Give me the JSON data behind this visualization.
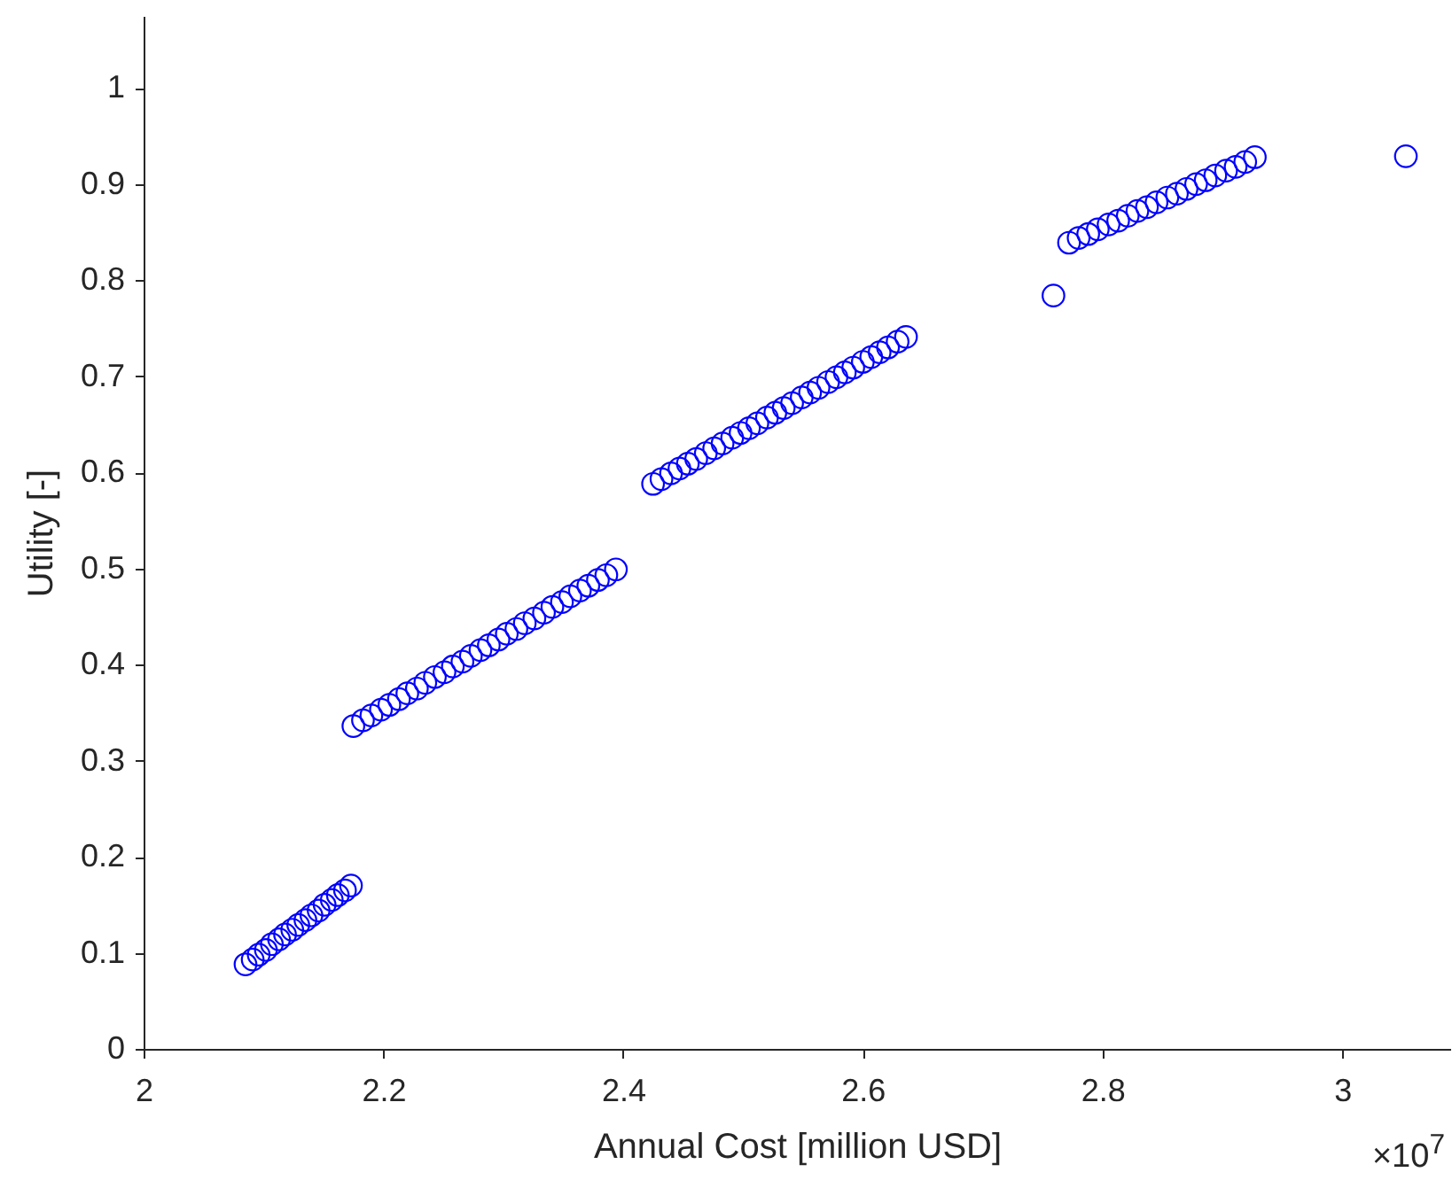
{
  "chart_data": {
    "type": "scatter",
    "xlabel": "Annual Cost [million USD]",
    "ylabel": "Utility [-]",
    "color": "#0000ff",
    "marker": "circle",
    "x": [
      2.085,
      2.091,
      2.096,
      2.102,
      2.107,
      2.113,
      2.118,
      2.124,
      2.129,
      2.135,
      2.14,
      2.146,
      2.151,
      2.157,
      2.162,
      2.168,
      2.173,
      2.175,
      2.183,
      2.19,
      2.198,
      2.205,
      2.213,
      2.22,
      2.228,
      2.235,
      2.243,
      2.251,
      2.258,
      2.266,
      2.273,
      2.281,
      2.288,
      2.296,
      2.303,
      2.311,
      2.318,
      2.326,
      2.334,
      2.341,
      2.349,
      2.356,
      2.364,
      2.371,
      2.379,
      2.386,
      2.394,
      2.425,
      2.432,
      2.44,
      2.447,
      2.454,
      2.461,
      2.469,
      2.476,
      2.483,
      2.491,
      2.498,
      2.505,
      2.512,
      2.52,
      2.527,
      2.534,
      2.541,
      2.549,
      2.556,
      2.563,
      2.571,
      2.578,
      2.585,
      2.592,
      2.6,
      2.607,
      2.614,
      2.621,
      2.629,
      2.636,
      2.759,
      2.772,
      2.78,
      2.788,
      2.796,
      2.805,
      2.813,
      2.821,
      2.829,
      2.837,
      2.845,
      2.854,
      2.862,
      2.87,
      2.878,
      2.886,
      2.894,
      2.903,
      2.911,
      2.919,
      2.927,
      3.053
    ],
    "values": [
      0.088,
      0.093,
      0.098,
      0.103,
      0.109,
      0.114,
      0.119,
      0.124,
      0.129,
      0.134,
      0.139,
      0.144,
      0.15,
      0.155,
      0.16,
      0.165,
      0.17,
      0.336,
      0.342,
      0.347,
      0.353,
      0.358,
      0.364,
      0.37,
      0.375,
      0.381,
      0.387,
      0.392,
      0.398,
      0.403,
      0.409,
      0.415,
      0.42,
      0.426,
      0.432,
      0.437,
      0.443,
      0.448,
      0.454,
      0.46,
      0.465,
      0.471,
      0.477,
      0.482,
      0.488,
      0.493,
      0.499,
      0.588,
      0.593,
      0.599,
      0.604,
      0.609,
      0.614,
      0.62,
      0.625,
      0.63,
      0.636,
      0.641,
      0.646,
      0.651,
      0.657,
      0.662,
      0.667,
      0.672,
      0.678,
      0.683,
      0.688,
      0.694,
      0.699,
      0.704,
      0.709,
      0.715,
      0.72,
      0.725,
      0.73,
      0.736,
      0.741,
      0.784,
      0.839,
      0.844,
      0.848,
      0.853,
      0.858,
      0.862,
      0.867,
      0.872,
      0.876,
      0.881,
      0.886,
      0.89,
      0.895,
      0.9,
      0.904,
      0.909,
      0.914,
      0.918,
      0.923,
      0.928,
      0.929
    ],
    "xlim": [
      2,
      3.09
    ],
    "ylim": [
      0,
      1.075
    ],
    "xticks": [
      2,
      2.2,
      2.4,
      2.6,
      2.8,
      3
    ],
    "yticks": [
      0,
      0.1,
      0.2,
      0.3,
      0.4,
      0.5,
      0.6,
      0.7,
      0.8,
      0.9,
      1
    ],
    "annotations": [
      "×10$^{7}$"
    ]
  }
}
